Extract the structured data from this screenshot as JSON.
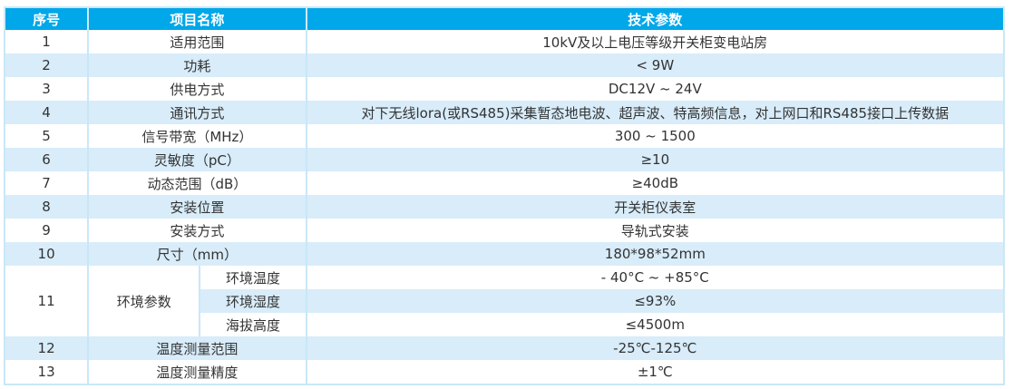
{
  "table": {
    "columns": {
      "no": "序号",
      "name": "项目名称",
      "value": "技术参数"
    },
    "rows": [
      {
        "no": "1",
        "name": "适用范围",
        "value": "10kV及以上电压等级开关柜变电站房"
      },
      {
        "no": "2",
        "name": "功耗",
        "value": "< 9W"
      },
      {
        "no": "3",
        "name": "供电方式",
        "value": "DC12V ~ 24V"
      },
      {
        "no": "4",
        "name": "通讯方式",
        "value": "对下无线lora(或RS485)采集暂态地电波、超声波、特高频信息，对上网口和RS485接口上传数据"
      },
      {
        "no": "5",
        "name": "信号带宽（MHz）",
        "value": "300 ~ 1500"
      },
      {
        "no": "6",
        "name": "灵敏度（pC）",
        "value": "≥10"
      },
      {
        "no": "7",
        "name": "动态范围（dB）",
        "value": "≥40dB"
      },
      {
        "no": "8",
        "name": "安装位置",
        "value": "开关柜仪表室"
      },
      {
        "no": "9",
        "name": "安装方式",
        "value": "导轨式安装"
      },
      {
        "no": "10",
        "name": "尺寸（mm）",
        "value": "180*98*52mm"
      },
      {
        "no": "11",
        "name": "环境参数",
        "subrows": [
          {
            "label": "环境温度",
            "value": "- 40°C ~ +85°C"
          },
          {
            "label": "环境湿度",
            "value": "≤93%"
          },
          {
            "label": "海拔高度",
            "value": "≤4500m"
          }
        ]
      },
      {
        "no": "12",
        "name": "温度测量范围",
        "value": "-25℃-125℃"
      },
      {
        "no": "13",
        "name": "温度测量精度",
        "value": "±1℃"
      }
    ],
    "colors": {
      "header_bg": "#00a7e9",
      "header_text": "#ffffff",
      "row_alt_bg": "#d8ecf9",
      "border": "#c9e7f8",
      "text": "#333333"
    }
  }
}
